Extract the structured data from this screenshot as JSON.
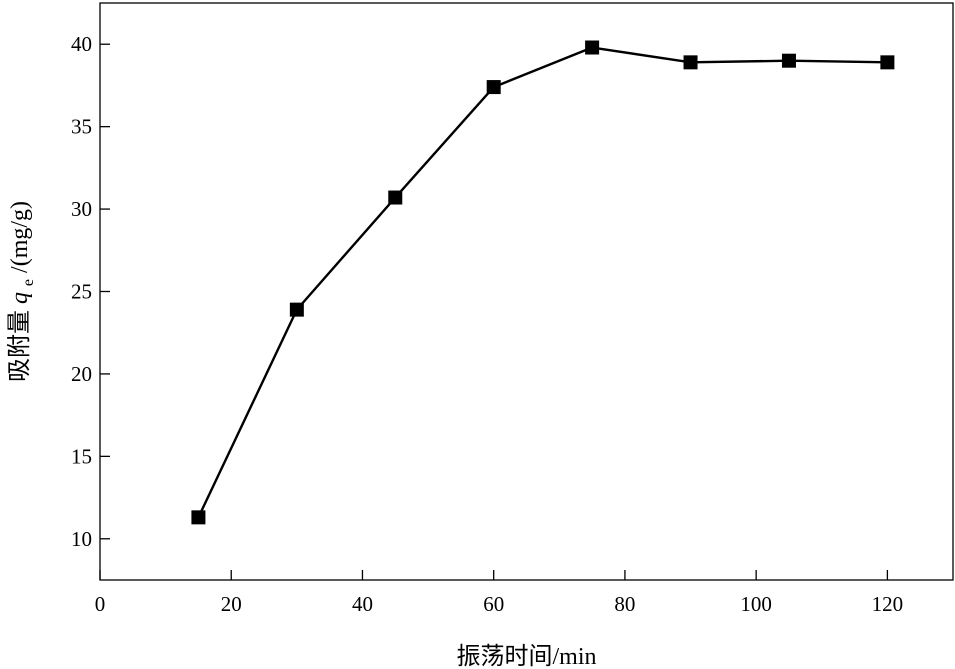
{
  "chart_data": {
    "type": "line",
    "title": "",
    "xlabel": "振荡时间/min",
    "ylabel": {
      "prefix": "吸附量",
      "symbol": "q",
      "subscript": "e",
      "unit": "/(mg/g)"
    },
    "xlim": [
      0,
      130
    ],
    "ylim": [
      7.5,
      42.5
    ],
    "xticks": [
      0,
      20,
      40,
      60,
      80,
      100,
      120
    ],
    "yticks": [
      10,
      15,
      20,
      25,
      30,
      35,
      40
    ],
    "grid": false,
    "legend": "none",
    "marker": "square",
    "series": [
      {
        "x": [
          15,
          30,
          45,
          60,
          75,
          90,
          105,
          120
        ],
        "y": [
          11.3,
          23.9,
          30.7,
          37.4,
          39.8,
          38.9,
          39.0,
          38.9
        ]
      }
    ]
  }
}
